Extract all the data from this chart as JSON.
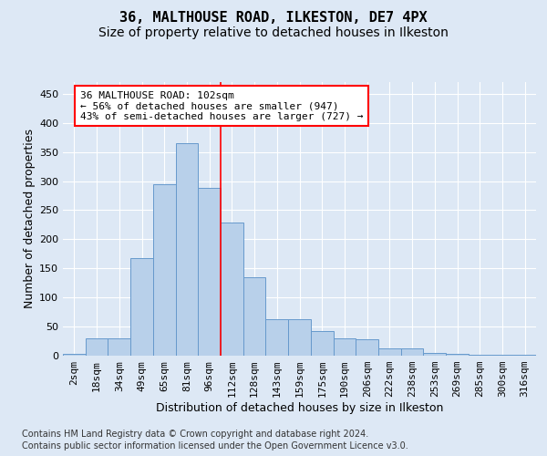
{
  "title": "36, MALTHOUSE ROAD, ILKESTON, DE7 4PX",
  "subtitle": "Size of property relative to detached houses in Ilkeston",
  "xlabel": "Distribution of detached houses by size in Ilkeston",
  "ylabel": "Number of detached properties",
  "footer_line1": "Contains HM Land Registry data © Crown copyright and database right 2024.",
  "footer_line2": "Contains public sector information licensed under the Open Government Licence v3.0.",
  "categories": [
    "2sqm",
    "18sqm",
    "34sqm",
    "49sqm",
    "65sqm",
    "81sqm",
    "96sqm",
    "112sqm",
    "128sqm",
    "143sqm",
    "159sqm",
    "175sqm",
    "190sqm",
    "206sqm",
    "222sqm",
    "238sqm",
    "253sqm",
    "269sqm",
    "285sqm",
    "300sqm",
    "316sqm"
  ],
  "values": [
    3,
    30,
    30,
    167,
    295,
    365,
    288,
    228,
    135,
    62,
    62,
    43,
    30,
    28,
    12,
    13,
    5,
    3,
    2,
    1,
    1
  ],
  "bar_color": "#b8d0ea",
  "bar_edge_color": "#6699cc",
  "vline_x": 6.5,
  "vline_color": "red",
  "annotation_line1": "36 MALTHOUSE ROAD: 102sqm",
  "annotation_line2": "← 56% of detached houses are smaller (947)",
  "annotation_line3": "43% of semi-detached houses are larger (727) →",
  "annotation_box_facecolor": "white",
  "annotation_box_edgecolor": "red",
  "ylim": [
    0,
    470
  ],
  "yticks": [
    0,
    50,
    100,
    150,
    200,
    250,
    300,
    350,
    400,
    450
  ],
  "bg_color": "#dde8f5",
  "title_fontsize": 11,
  "subtitle_fontsize": 10,
  "ylabel_fontsize": 9,
  "xlabel_fontsize": 9,
  "tick_fontsize": 8,
  "annotation_fontsize": 8,
  "footer_fontsize": 7
}
